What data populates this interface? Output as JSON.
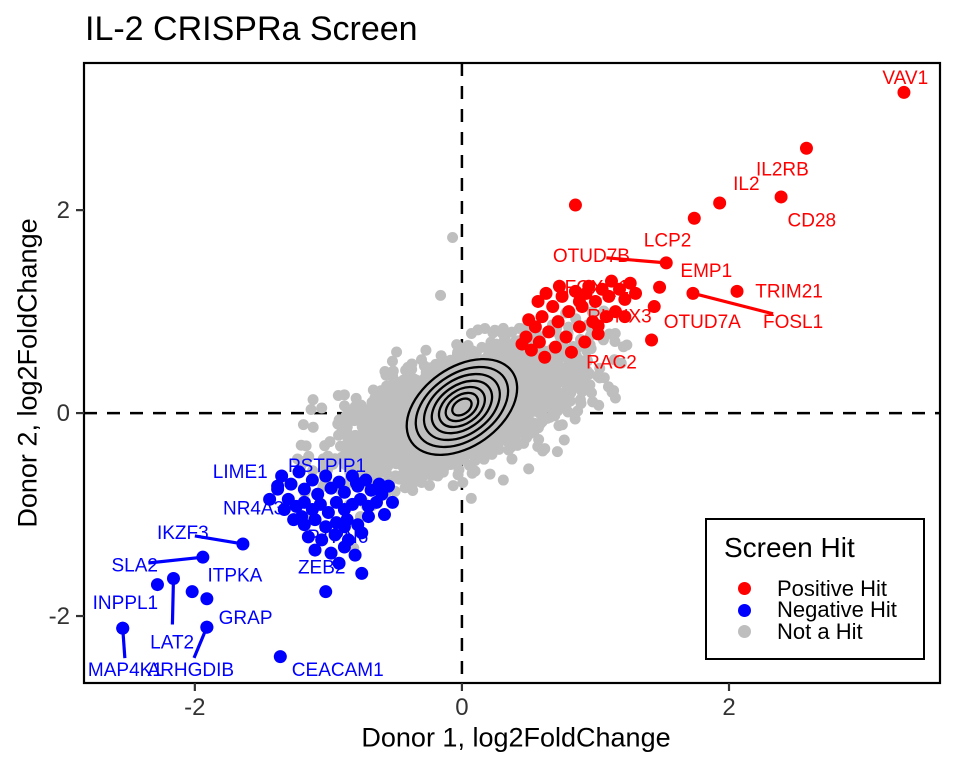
{
  "title": "IL-2 CRISPRa Screen",
  "legend": {
    "title": "Screen Hit",
    "items": [
      {
        "label": "Positive Hit",
        "color": "#FF0000"
      },
      {
        "label": "Negative Hit",
        "color": "#0000FF"
      },
      {
        "label": "Not a Hit",
        "color": "#BEBEBE"
      }
    ]
  },
  "chart_data": {
    "type": "scatter",
    "title": "IL-2 CRISPRa Screen",
    "xlabel": "Donor 1, log2FoldChange",
    "ylabel": "Donor 2, log2FoldChange",
    "xlim": [
      -2.83,
      3.58
    ],
    "ylim": [
      -2.66,
      3.45
    ],
    "x_ticks": [
      -2,
      0,
      2
    ],
    "y_ticks": [
      -2,
      0,
      2
    ],
    "grid": false,
    "reference_lines": {
      "x": 0,
      "y": 0,
      "style": "dashed",
      "color": "#000000"
    },
    "legend_position": "inside-bottom-right",
    "series": [
      {
        "name": "Positive Hit",
        "color": "#FF0000",
        "labeled_points": [
          {
            "gene": "VAV1",
            "x": 3.31,
            "y": 3.16,
            "lx": 3.32,
            "ly": 3.3,
            "leader": false,
            "under": false
          },
          {
            "gene": "IL2RB",
            "x": 2.58,
            "y": 2.61,
            "lx": 2.4,
            "ly": 2.4,
            "leader": false,
            "under": false
          },
          {
            "gene": "IL2",
            "x": 1.93,
            "y": 2.07,
            "lx": 2.13,
            "ly": 2.26,
            "leader": false,
            "under": false
          },
          {
            "gene": "CD28",
            "x": 2.39,
            "y": 2.13,
            "lx": 2.62,
            "ly": 1.9,
            "leader": false,
            "under": false
          },
          {
            "gene": "LCP2",
            "x": 1.74,
            "y": 1.92,
            "lx": 1.54,
            "ly": 1.7,
            "leader": false,
            "under": false
          },
          {
            "gene": "OTUD7B",
            "x": 1.53,
            "y": 1.48,
            "lx": 0.97,
            "ly": 1.55,
            "leader": true,
            "under": false
          },
          {
            "gene": "EMP1",
            "x": 1.48,
            "y": 1.24,
            "lx": 1.83,
            "ly": 1.4,
            "leader": false,
            "under": false
          },
          {
            "gene": "TRIM21",
            "x": 2.06,
            "y": 1.2,
            "lx": 2.45,
            "ly": 1.2,
            "leader": false,
            "under": false
          },
          {
            "gene": "FOXQ1",
            "x": 0.88,
            "y": 1.1,
            "lx": 1.01,
            "ly": 1.24,
            "leader": false,
            "under": true
          },
          {
            "gene": "RUNX3",
            "x": 1.02,
            "y": 0.86,
            "lx": 1.18,
            "ly": 0.95,
            "leader": false,
            "under": true
          },
          {
            "gene": "OTUD7A",
            "x": 1.44,
            "y": 1.05,
            "lx": 1.8,
            "ly": 0.9,
            "leader": false,
            "under": false
          },
          {
            "gene": "FOSL1",
            "x": 1.73,
            "y": 1.18,
            "lx": 2.48,
            "ly": 0.9,
            "leader": true,
            "under": false
          },
          {
            "gene": "RAC2",
            "x": 1.42,
            "y": 0.72,
            "lx": 1.12,
            "ly": 0.5,
            "leader": false,
            "under": false
          }
        ],
        "points": [
          [
            0.48,
            0.75
          ],
          [
            0.52,
            0.62
          ],
          [
            0.55,
            0.85
          ],
          [
            0.58,
            0.7
          ],
          [
            0.6,
            0.95
          ],
          [
            0.62,
            0.55
          ],
          [
            0.65,
            0.8
          ],
          [
            0.68,
            1.05
          ],
          [
            0.7,
            0.65
          ],
          [
            0.72,
            0.9
          ],
          [
            0.75,
            1.15
          ],
          [
            0.78,
            0.75
          ],
          [
            0.8,
            1.0
          ],
          [
            0.82,
            0.6
          ],
          [
            0.85,
            1.2
          ],
          [
            0.88,
            0.85
          ],
          [
            0.9,
            1.05
          ],
          [
            0.92,
            0.7
          ],
          [
            0.95,
            1.25
          ],
          [
            0.98,
            0.9
          ],
          [
            1.0,
            1.1
          ],
          [
            1.02,
            0.78
          ],
          [
            1.05,
            1.22
          ],
          [
            1.08,
            0.95
          ],
          [
            1.1,
            1.15
          ],
          [
            1.12,
            1.3
          ],
          [
            1.15,
            1.0
          ],
          [
            1.18,
            1.22
          ],
          [
            1.22,
            1.12
          ],
          [
            1.26,
            1.28
          ],
          [
            1.3,
            1.18
          ],
          [
            0.45,
            0.68
          ],
          [
            0.5,
            0.92
          ],
          [
            0.57,
            1.1
          ],
          [
            0.63,
            1.18
          ],
          [
            0.73,
            1.25
          ],
          [
            0.93,
            1.18
          ],
          [
            1.22,
            0.95
          ],
          [
            0.85,
            2.05
          ]
        ]
      },
      {
        "name": "Negative Hit",
        "color": "#0000FF",
        "labeled_points": [
          {
            "gene": "LIME1",
            "x": -1.38,
            "y": -0.75,
            "lx": -1.66,
            "ly": -0.58,
            "leader": false,
            "under": false
          },
          {
            "gene": "PSTPIP1",
            "x": -0.79,
            "y": -0.69,
            "lx": -1.01,
            "ly": -0.52,
            "leader": false,
            "under": false
          },
          {
            "gene": "NR4A3",
            "x": -1.2,
            "y": -1.02,
            "lx": -1.56,
            "ly": -0.94,
            "leader": false,
            "under": false
          },
          {
            "gene": "IKZF3",
            "x": -1.64,
            "y": -1.29,
            "lx": -2.09,
            "ly": -1.18,
            "leader": true,
            "under": false
          },
          {
            "gene": "SLA2",
            "x": -1.94,
            "y": -1.42,
            "lx": -2.45,
            "ly": -1.5,
            "leader": true,
            "under": false
          },
          {
            "gene": "PTPN6",
            "x": -0.88,
            "y": -1.12,
            "lx": -0.93,
            "ly": -1.22,
            "leader": false,
            "under": true
          },
          {
            "gene": "ITPKA",
            "x": -2.02,
            "y": -1.76,
            "lx": -1.7,
            "ly": -1.6,
            "leader": false,
            "under": false
          },
          {
            "gene": "ZEB2",
            "x": -0.75,
            "y": -1.58,
            "lx": -1.05,
            "ly": -1.52,
            "leader": false,
            "under": false
          },
          {
            "gene": "INPPL1",
            "x": -2.54,
            "y": -2.12,
            "lx": -2.52,
            "ly": -1.87,
            "leader": false,
            "under": false
          },
          {
            "gene": "GRAP",
            "x": -1.91,
            "y": -2.11,
            "lx": -1.62,
            "ly": -2.02,
            "leader": false,
            "under": false
          },
          {
            "gene": "LAT2",
            "x": -2.16,
            "y": -1.63,
            "lx": -2.17,
            "ly": -2.26,
            "leader": true,
            "under": false
          },
          {
            "gene": "MAP4K1",
            "x": -2.54,
            "y": -2.12,
            "lx": -2.52,
            "ly": -2.53,
            "leader": true,
            "under": false
          },
          {
            "gene": "ARHGDIB",
            "x": -1.91,
            "y": -2.11,
            "lx": -2.03,
            "ly": -2.53,
            "leader": true,
            "under": false
          },
          {
            "gene": "CEACAM1",
            "x": -1.36,
            "y": -2.4,
            "lx": -0.93,
            "ly": -2.53,
            "leader": false,
            "under": false
          }
        ],
        "points": [
          [
            -1.35,
            -0.62
          ],
          [
            -1.28,
            -0.7
          ],
          [
            -1.22,
            -0.58
          ],
          [
            -1.18,
            -0.75
          ],
          [
            -1.12,
            -0.66
          ],
          [
            -1.08,
            -0.8
          ],
          [
            -1.02,
            -0.62
          ],
          [
            -0.98,
            -0.74
          ],
          [
            -0.92,
            -0.68
          ],
          [
            -0.88,
            -0.78
          ],
          [
            -0.82,
            -0.62
          ],
          [
            -0.78,
            -0.72
          ],
          [
            -0.72,
            -0.66
          ],
          [
            -0.68,
            -0.76
          ],
          [
            -0.62,
            -0.7
          ],
          [
            -1.3,
            -0.85
          ],
          [
            -1.24,
            -0.92
          ],
          [
            -1.18,
            -0.88
          ],
          [
            -1.12,
            -0.95
          ],
          [
            -1.06,
            -0.9
          ],
          [
            -1.0,
            -0.98
          ],
          [
            -0.94,
            -0.88
          ],
          [
            -0.88,
            -0.95
          ],
          [
            -0.82,
            -0.9
          ],
          [
            -0.76,
            -0.85
          ],
          [
            -0.7,
            -0.92
          ],
          [
            -0.64,
            -0.88
          ],
          [
            -1.26,
            -1.05
          ],
          [
            -1.18,
            -1.1
          ],
          [
            -1.1,
            -1.05
          ],
          [
            -1.02,
            -1.12
          ],
          [
            -0.94,
            -1.08
          ],
          [
            -0.86,
            -1.05
          ],
          [
            -0.78,
            -1.1
          ],
          [
            -0.7,
            -1.02
          ],
          [
            -1.15,
            -1.22
          ],
          [
            -1.05,
            -1.25
          ],
          [
            -0.95,
            -1.2
          ],
          [
            -0.85,
            -1.25
          ],
          [
            -0.75,
            -1.18
          ],
          [
            -1.1,
            -1.35
          ],
          [
            -0.98,
            -1.38
          ],
          [
            -0.88,
            -1.32
          ],
          [
            -0.8,
            -1.4
          ],
          [
            -0.92,
            -1.48
          ],
          [
            -0.6,
            -0.8
          ],
          [
            -0.55,
            -0.72
          ],
          [
            -0.52,
            -0.88
          ],
          [
            -0.58,
            -1.0
          ],
          [
            -1.38,
            -0.72
          ],
          [
            -1.33,
            -0.95
          ],
          [
            -2.28,
            -1.69
          ],
          [
            -1.91,
            -1.83
          ],
          [
            -1.02,
            -1.76
          ],
          [
            -1.44,
            -0.85
          ]
        ]
      },
      {
        "name": "Not a Hit",
        "color": "#BEBEBE",
        "cloud": {
          "count": 3000,
          "center": [
            0.0,
            0.04
          ],
          "sd": [
            0.4,
            0.3
          ],
          "correlation": 0.55,
          "seed": 7
        },
        "points": [
          [
            -0.07,
            1.73
          ],
          [
            -0.16,
            1.16
          ],
          [
            -0.88,
            0.18
          ],
          [
            -0.76,
            -1.02
          ],
          [
            -0.81,
            -1.33
          ],
          [
            0.07,
            -0.84
          ],
          [
            0.31,
            -0.66
          ],
          [
            0.5,
            -0.55
          ],
          [
            0.77,
            0.42
          ],
          [
            0.62,
            -0.35
          ],
          [
            -1.05,
            0.05
          ],
          [
            -0.95,
            -0.45
          ]
        ]
      }
    ],
    "density_contours": {
      "center": [
        0.0,
        0.06
      ],
      "rotation_deg": -35,
      "semi_axes": [
        [
          0.46,
          0.39
        ],
        [
          0.385,
          0.325
        ],
        [
          0.315,
          0.27
        ],
        [
          0.25,
          0.215
        ],
        [
          0.19,
          0.165
        ],
        [
          0.135,
          0.115
        ],
        [
          0.08,
          0.07
        ]
      ]
    }
  }
}
